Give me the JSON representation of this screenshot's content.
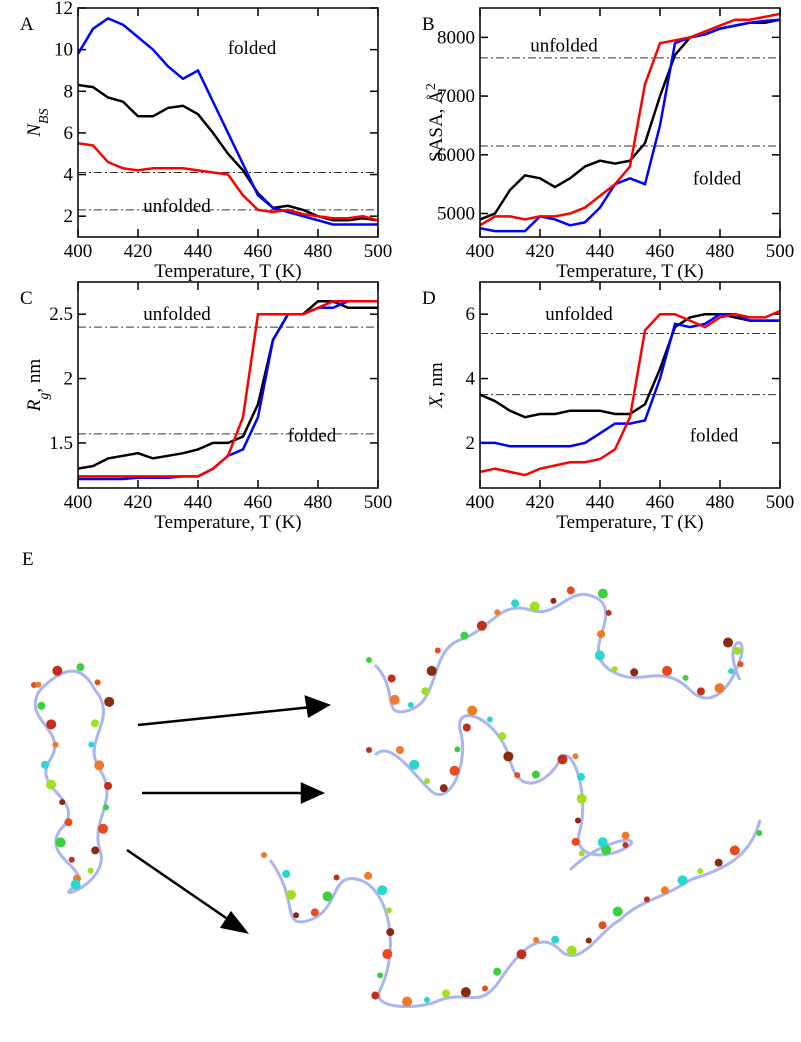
{
  "chart_data": [
    {
      "type": "line",
      "panel": "A",
      "xlabel": "Temperature, T (K)",
      "ylabel": [
        {
          "text": "N",
          "style": "italic"
        },
        {
          "text": "BS",
          "style": "sub-italic"
        }
      ],
      "x": [
        400,
        405,
        410,
        415,
        420,
        425,
        430,
        435,
        440,
        445,
        450,
        455,
        460,
        465,
        470,
        475,
        480,
        485,
        490,
        495,
        500
      ],
      "xlim": [
        400,
        500
      ],
      "xticks": [
        400,
        420,
        440,
        460,
        480,
        500
      ],
      "ylim": [
        1,
        12
      ],
      "yticks": [
        2,
        4,
        6,
        8,
        10,
        12
      ],
      "hlines": [
        4.1,
        2.3
      ],
      "annotations": [
        "folded",
        "unfolded"
      ],
      "series": [
        {
          "color": "#000000",
          "values": [
            8.3,
            8.2,
            7.7,
            7.5,
            6.8,
            6.8,
            7.2,
            7.3,
            6.9,
            6.0,
            5.0,
            4.2,
            3.1,
            2.4,
            2.5,
            2.3,
            2.0,
            1.8,
            1.8,
            1.9,
            1.8
          ]
        },
        {
          "color": "#0000ff",
          "values": [
            9.8,
            11.0,
            11.5,
            11.2,
            10.6,
            10.0,
            9.2,
            8.6,
            9.0,
            7.5,
            6.0,
            4.5,
            3.0,
            2.4,
            2.2,
            2.0,
            1.8,
            1.6,
            1.6,
            1.6,
            1.6
          ]
        },
        {
          "color": "#ff0000",
          "values": [
            5.5,
            5.4,
            4.6,
            4.3,
            4.2,
            4.3,
            4.3,
            4.3,
            4.2,
            4.1,
            4.0,
            3.0,
            2.3,
            2.2,
            2.3,
            2.1,
            2.0,
            1.9,
            1.9,
            2.0,
            1.8
          ]
        }
      ]
    },
    {
      "type": "line",
      "panel": "B",
      "xlabel": "Temperature, T (K)",
      "ylabel": [
        {
          "text": "SASA, Å",
          "style": "normal"
        },
        {
          "text": "2",
          "style": "sup"
        }
      ],
      "x": [
        400,
        405,
        410,
        415,
        420,
        425,
        430,
        435,
        440,
        445,
        450,
        455,
        460,
        465,
        470,
        475,
        480,
        485,
        490,
        495,
        500
      ],
      "xlim": [
        400,
        500
      ],
      "xticks": [
        400,
        420,
        440,
        460,
        480,
        500
      ],
      "ylim": [
        4600,
        8500
      ],
      "yticks": [
        5000,
        6000,
        7000,
        8000
      ],
      "hlines": [
        7650,
        6150
      ],
      "annotations": [
        "unfolded",
        "folded"
      ],
      "series": [
        {
          "color": "#000000",
          "values": [
            4900,
            5000,
            5400,
            5650,
            5600,
            5450,
            5600,
            5800,
            5900,
            5850,
            5900,
            6200,
            7000,
            7700,
            8000,
            8050,
            8150,
            8200,
            8250,
            8250,
            8300
          ]
        },
        {
          "color": "#0000ff",
          "values": [
            4750,
            4700,
            4700,
            4700,
            4950,
            4900,
            4800,
            4850,
            5100,
            5500,
            5600,
            5500,
            6500,
            7900,
            8000,
            8050,
            8150,
            8200,
            8250,
            8280,
            8300
          ]
        },
        {
          "color": "#ff0000",
          "values": [
            4800,
            4950,
            4950,
            4900,
            4950,
            4950,
            5000,
            5100,
            5300,
            5500,
            5800,
            7200,
            7900,
            7950,
            8000,
            8100,
            8200,
            8300,
            8300,
            8350,
            8400
          ]
        }
      ]
    },
    {
      "type": "line",
      "panel": "C",
      "xlabel": "Temperature, T (K)",
      "ylabel": [
        {
          "text": "R",
          "style": "italic"
        },
        {
          "text": "g",
          "style": "sub-italic"
        },
        {
          "text": ", nm",
          "style": "normal"
        }
      ],
      "x": [
        400,
        405,
        410,
        415,
        420,
        425,
        430,
        435,
        440,
        445,
        450,
        455,
        460,
        465,
        470,
        475,
        480,
        485,
        490,
        495,
        500
      ],
      "xlim": [
        400,
        500
      ],
      "xticks": [
        400,
        420,
        440,
        460,
        480,
        500
      ],
      "ylim": [
        1.15,
        2.75
      ],
      "yticks": [
        1.5,
        2,
        2.5
      ],
      "hlines": [
        2.4,
        1.57
      ],
      "annotations": [
        "unfolded",
        "folded"
      ],
      "series": [
        {
          "color": "#000000",
          "values": [
            1.3,
            1.32,
            1.38,
            1.4,
            1.42,
            1.38,
            1.4,
            1.42,
            1.45,
            1.5,
            1.5,
            1.55,
            1.8,
            2.3,
            2.5,
            2.5,
            2.6,
            2.6,
            2.55,
            2.55,
            2.55
          ]
        },
        {
          "color": "#0000ff",
          "values": [
            1.22,
            1.22,
            1.22,
            1.22,
            1.23,
            1.23,
            1.23,
            1.24,
            1.24,
            1.3,
            1.4,
            1.45,
            1.7,
            2.3,
            2.5,
            2.5,
            2.55,
            2.55,
            2.6,
            2.6,
            2.6
          ]
        },
        {
          "color": "#ff0000",
          "values": [
            1.24,
            1.24,
            1.24,
            1.24,
            1.24,
            1.24,
            1.24,
            1.24,
            1.24,
            1.3,
            1.4,
            1.7,
            2.5,
            2.5,
            2.5,
            2.5,
            2.55,
            2.6,
            2.6,
            2.6,
            2.6
          ]
        }
      ]
    },
    {
      "type": "line",
      "panel": "D",
      "xlabel": "Temperature, T (K)",
      "ylabel": [
        {
          "text": "X",
          "style": "italic"
        },
        {
          "text": ", nm",
          "style": "normal"
        }
      ],
      "x": [
        400,
        405,
        410,
        415,
        420,
        425,
        430,
        435,
        440,
        445,
        450,
        455,
        460,
        465,
        470,
        475,
        480,
        485,
        490,
        495,
        500
      ],
      "xlim": [
        400,
        500
      ],
      "xticks": [
        400,
        420,
        440,
        460,
        480,
        500
      ],
      "ylim": [
        0.6,
        7
      ],
      "yticks": [
        2,
        4,
        6
      ],
      "hlines": [
        5.4,
        3.5
      ],
      "annotations": [
        "unfolded",
        "folded"
      ],
      "series": [
        {
          "color": "#000000",
          "values": [
            3.5,
            3.3,
            3.0,
            2.8,
            2.9,
            2.9,
            3.0,
            3.0,
            3.0,
            2.9,
            2.9,
            3.2,
            4.3,
            5.6,
            5.9,
            6.0,
            6.0,
            5.9,
            5.8,
            5.8,
            5.8
          ]
        },
        {
          "color": "#0000ff",
          "values": [
            2.0,
            2.0,
            1.9,
            1.9,
            1.9,
            1.9,
            1.9,
            2.0,
            2.3,
            2.6,
            2.6,
            2.7,
            4.0,
            5.7,
            5.6,
            5.7,
            6.0,
            6.0,
            5.8,
            5.8,
            5.8
          ]
        },
        {
          "color": "#ff0000",
          "values": [
            1.1,
            1.2,
            1.1,
            1.0,
            1.2,
            1.3,
            1.4,
            1.4,
            1.5,
            1.8,
            2.8,
            5.5,
            6.0,
            6.0,
            5.8,
            5.6,
            5.9,
            6.0,
            5.9,
            5.9,
            6.1
          ]
        }
      ]
    }
  ],
  "figure": {
    "panel_e": "E"
  }
}
